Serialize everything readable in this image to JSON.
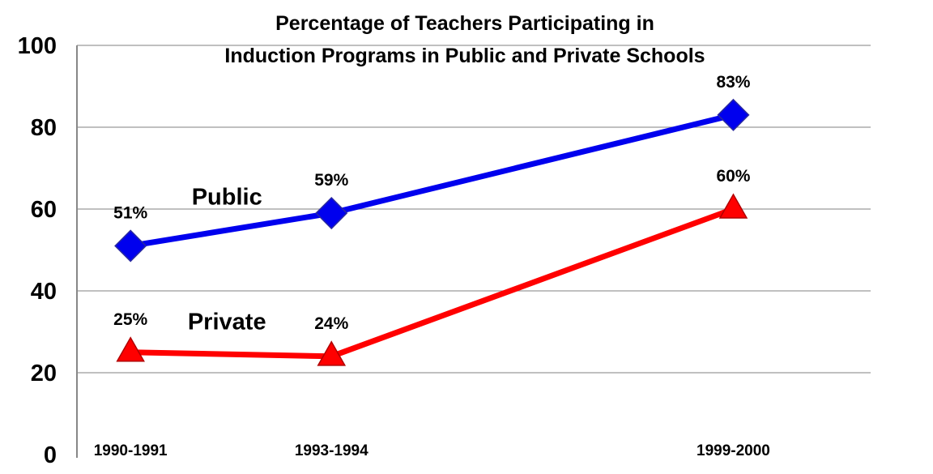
{
  "chart_data": {
    "type": "line",
    "title_lines": [
      "Percentage of Teachers Participating in",
      "Induction Programs in Public and Private Schools"
    ],
    "categories": [
      "1990-1991",
      "1993-1994",
      "1999-2000"
    ],
    "x": [
      1990,
      1993,
      1999
    ],
    "ylim": [
      0,
      100
    ],
    "yticks": [
      0,
      20,
      40,
      60,
      80,
      100
    ],
    "grid": true,
    "series": [
      {
        "name": "Public",
        "values": [
          51,
          59,
          83
        ],
        "labels": [
          "51%",
          "59%",
          "83%"
        ],
        "color": "#0000ee",
        "marker": "diamond"
      },
      {
        "name": "Private",
        "values": [
          25,
          24,
          60
        ],
        "labels": [
          "25%",
          "24%",
          "60%"
        ],
        "color": "#ff0000",
        "marker": "triangle"
      }
    ]
  }
}
